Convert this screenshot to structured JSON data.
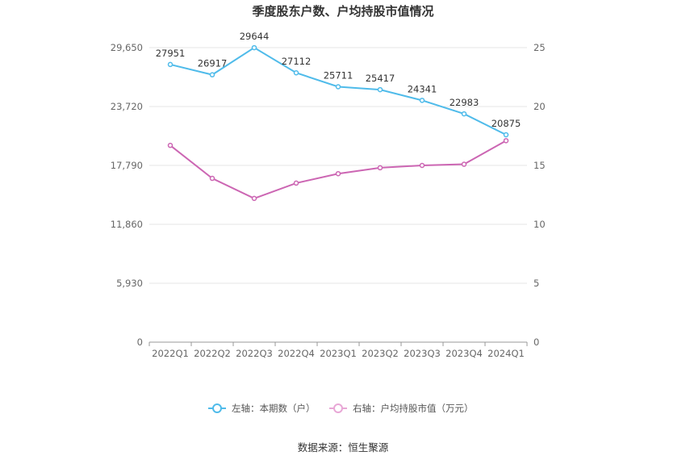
{
  "chart_data": {
    "type": "line",
    "title": "季度股东户数、户均持股市值情况",
    "categories": [
      "2022Q1",
      "2022Q2",
      "2022Q3",
      "2022Q4",
      "2023Q1",
      "2023Q2",
      "2023Q3",
      "2023Q4",
      "2024Q1"
    ],
    "left_axis": {
      "min": 0,
      "max": 29650,
      "ticks": [
        "0",
        "5,930",
        "11,860",
        "17,790",
        "23,720",
        "29,650"
      ]
    },
    "right_axis": {
      "min": 0,
      "max": 25,
      "ticks": [
        "0",
        "5",
        "10",
        "15",
        "20",
        "25"
      ]
    },
    "series": [
      {
        "name": "左轴：本期数（户）",
        "axis": "left",
        "color": "#4fbbea",
        "values": [
          27951,
          26917,
          29644,
          27112,
          25711,
          25417,
          24341,
          22983,
          20875
        ],
        "labels": [
          "27951",
          "26917",
          "29644",
          "27112",
          "25711",
          "25417",
          "24341",
          "22983",
          "20875"
        ]
      },
      {
        "name": "右轴：户均持股市值（万元）",
        "axis": "right",
        "color": "#cc66b3",
        "values": [
          16.7,
          13.9,
          12.2,
          13.5,
          14.3,
          14.8,
          15.0,
          15.1,
          17.1
        ]
      }
    ],
    "grid": true,
    "legend_position": "bottom"
  },
  "source": "数据来源：恒生聚源"
}
